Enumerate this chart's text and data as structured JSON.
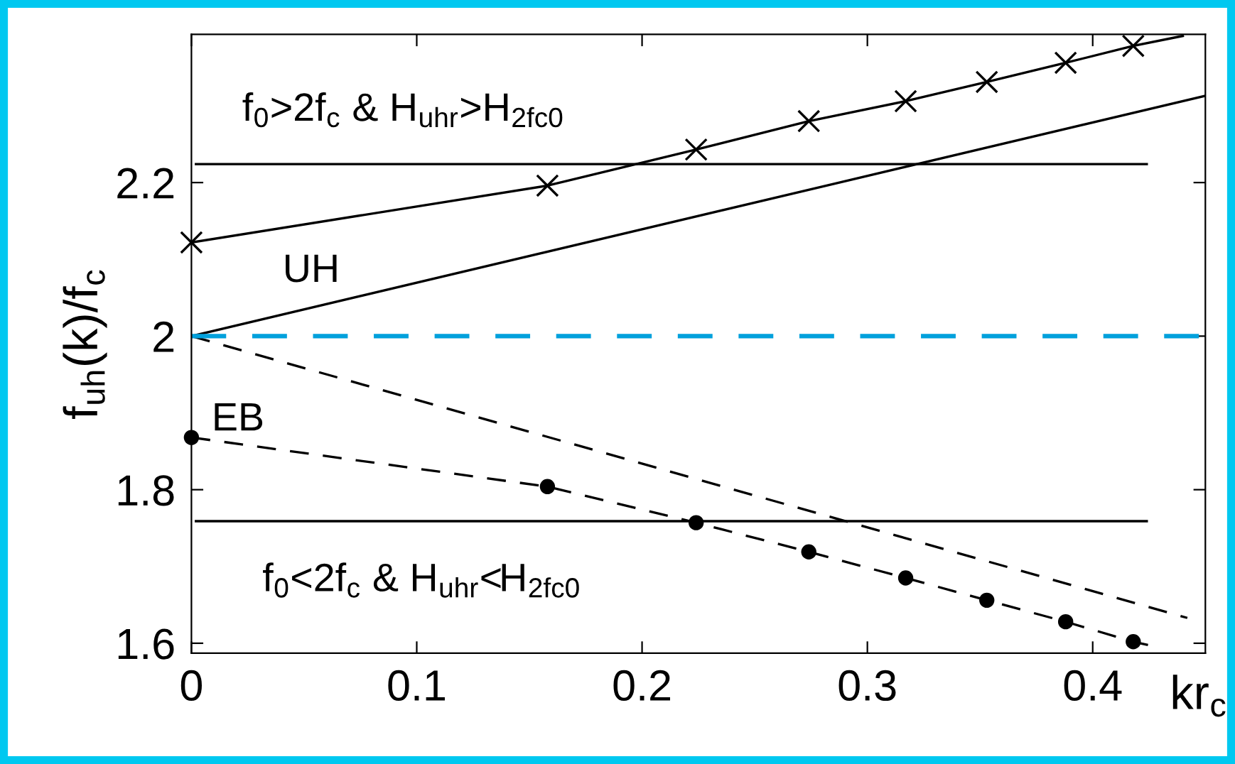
{
  "chart_data": {
    "type": "line",
    "xlabel": "kr$_{c}$",
    "ylabel": "f$_{uh}$(k)/f$_{c}$",
    "xlim": [
      0,
      0.45
    ],
    "ylim": [
      1.587,
      2.393
    ],
    "xticks": [
      0,
      0.1,
      0.2,
      0.3,
      0.4
    ],
    "yticks": [
      1.6,
      1.8,
      2,
      2.2
    ],
    "grid": false,
    "legend": false,
    "series": [
      {
        "color": "#000000",
        "line_style": "solid",
        "marker": "none",
        "x": [
          0,
          0.158,
          0.224,
          0.274,
          0.317,
          0.353,
          0.388,
          0.418,
          0.44
        ],
        "values": [
          2.122,
          2.196,
          2.243,
          2.28,
          2.306,
          2.331,
          2.356,
          2.378,
          2.391
        ]
      },
      {
        "type": "scatter",
        "color": "#000000",
        "marker": "cross",
        "x": [
          0,
          0.158,
          0.224,
          0.274,
          0.317,
          0.353,
          0.388,
          0.418
        ],
        "values": [
          2.122,
          2.196,
          2.243,
          2.28,
          2.306,
          2.331,
          2.356,
          2.378
        ]
      },
      {
        "color": "#000000",
        "line_style": "solid",
        "marker": "none",
        "x": [
          0,
          0.45
        ],
        "values": [
          2.0,
          2.313
        ]
      },
      {
        "color": "#000000",
        "line_style": "dashed",
        "marker": "none",
        "x": [
          0,
          0.442
        ],
        "values": [
          2.0,
          1.633
        ]
      },
      {
        "color": "#000000",
        "line_style": "dashed",
        "marker": "none",
        "x": [
          0,
          0.158,
          0.224,
          0.274,
          0.317,
          0.353,
          0.388,
          0.418,
          0.43
        ],
        "values": [
          1.868,
          1.804,
          1.757,
          1.719,
          1.685,
          1.656,
          1.628,
          1.602,
          1.594
        ]
      },
      {
        "type": "scatter",
        "color": "#000000",
        "marker": "circle",
        "x": [
          0,
          0.158,
          0.224,
          0.274,
          0.317,
          0.353,
          0.388,
          0.418
        ],
        "values": [
          1.868,
          1.804,
          1.757,
          1.719,
          1.685,
          1.656,
          1.628,
          1.602
        ]
      },
      {
        "color": "#000000",
        "line_style": "solid",
        "marker": "none",
        "x": [
          0.002,
          0.424
        ],
        "values": [
          2.224,
          2.224
        ]
      },
      {
        "color": "#000000",
        "line_style": "solid",
        "marker": "none",
        "x": [
          0.002,
          0.424
        ],
        "values": [
          1.759,
          1.759
        ]
      }
    ],
    "ref_lines": [
      {
        "axis": "y",
        "value": 2,
        "label": null,
        "color": "#00a0dc",
        "line_style": "dashed"
      }
    ],
    "annotations": [
      "f$_{0}$>2f$_{c}$ & H$_{uhr}$>H$_{2fc0}$",
      "UH",
      "EB",
      "f$_{0}$<2f$_{c}$ & H$_{uhr}$<H$_{2fc0}$"
    ]
  }
}
